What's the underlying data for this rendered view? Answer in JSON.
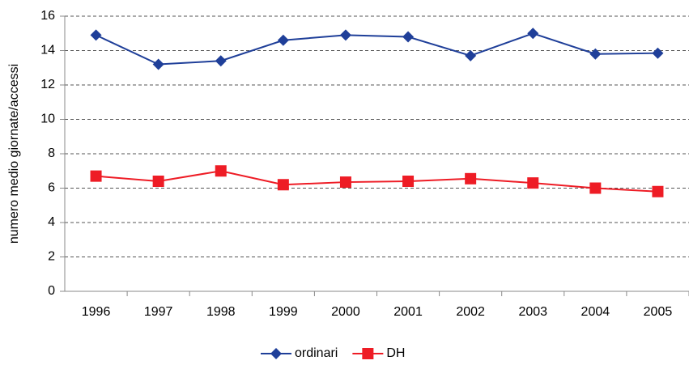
{
  "chart_data": {
    "type": "line",
    "y_label": "numero medio giornate/accessi",
    "categories": [
      "1996",
      "1997",
      "1998",
      "1999",
      "2000",
      "2001",
      "2002",
      "2003",
      "2004",
      "2005"
    ],
    "series": [
      {
        "name": "ordinari",
        "color": "#1f3f99",
        "marker": "diamond",
        "values": [
          14.9,
          13.2,
          13.4,
          14.6,
          14.9,
          14.8,
          13.7,
          15.0,
          13.8,
          13.85
        ]
      },
      {
        "name": "DH",
        "color": "#ee1c25",
        "marker": "square",
        "values": [
          6.7,
          6.4,
          7.0,
          6.2,
          6.35,
          6.4,
          6.55,
          6.3,
          6.0,
          5.8
        ]
      }
    ],
    "ylim": [
      0,
      16
    ],
    "yticks": [
      0,
      2,
      4,
      6,
      8,
      10,
      12,
      14,
      16
    ],
    "grid": true,
    "legend": "bottom"
  }
}
